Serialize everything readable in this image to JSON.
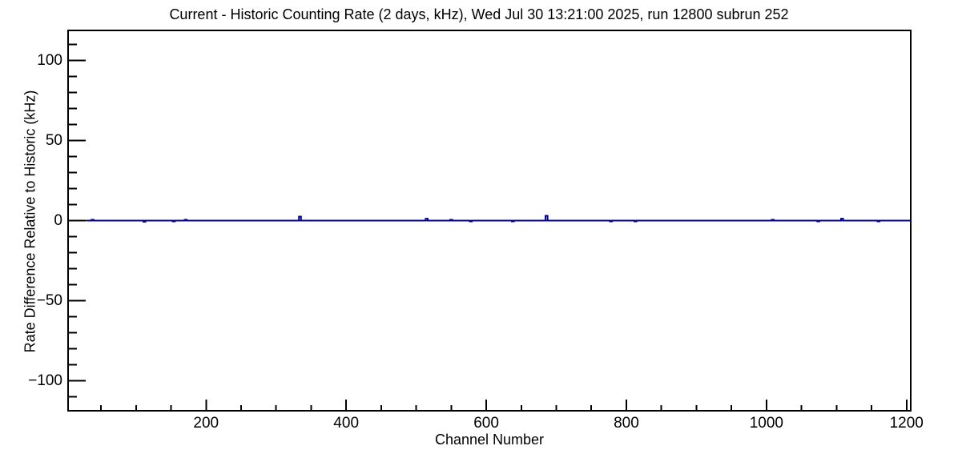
{
  "page": {
    "background": "#ffffff",
    "frame_color": "#000000"
  },
  "chart_data": {
    "type": "line",
    "title": "Current - Historic Counting Rate (2 days, kHz), Wed Jul 30 13:21:00 2025, run 12800 subrun 252",
    "xlabel": "Channel Number",
    "ylabel": "Rate Difference Relative to Historic (kHz)",
    "xlim": [
      3,
      1206
    ],
    "ylim": [
      -118.75,
      118.75
    ],
    "grid": false,
    "legend_position": "none",
    "x_major_ticks": [
      200,
      400,
      600,
      800,
      1000,
      1200
    ],
    "x_major_tick_labels": [
      "200",
      "400",
      "600",
      "800",
      "1000",
      "1200"
    ],
    "x_minor_step": 50,
    "y_major_ticks": [
      -100,
      -50,
      0,
      50,
      100
    ],
    "y_major_tick_labels": [
      "−100",
      "−50",
      "0",
      "50",
      "100"
    ],
    "y_minor_step": 10,
    "zero_line": {
      "value": 0,
      "color": "#000000"
    },
    "series": [
      {
        "name": "rate-difference-vs-historic",
        "color": "#000099",
        "baseline_value": 0,
        "line_start_channel": 30,
        "line_end_channel": 1206,
        "spikes": [
          {
            "channel": 38,
            "value": 0.5
          },
          {
            "channel": 112,
            "value": -0.7
          },
          {
            "channel": 154,
            "value": -0.5
          },
          {
            "channel": 171,
            "value": 0.5
          },
          {
            "channel": 334,
            "value": 2.5
          },
          {
            "channel": 515,
            "value": 1.2
          },
          {
            "channel": 550,
            "value": 0.5
          },
          {
            "channel": 578,
            "value": -0.5
          },
          {
            "channel": 638,
            "value": -0.5
          },
          {
            "channel": 686,
            "value": 3.0
          },
          {
            "channel": 778,
            "value": -0.5
          },
          {
            "channel": 813,
            "value": -0.5
          },
          {
            "channel": 1009,
            "value": 0.5
          },
          {
            "channel": 1074,
            "value": -0.5
          },
          {
            "channel": 1108,
            "value": 1.2
          },
          {
            "channel": 1160,
            "value": -0.5
          }
        ]
      }
    ]
  }
}
